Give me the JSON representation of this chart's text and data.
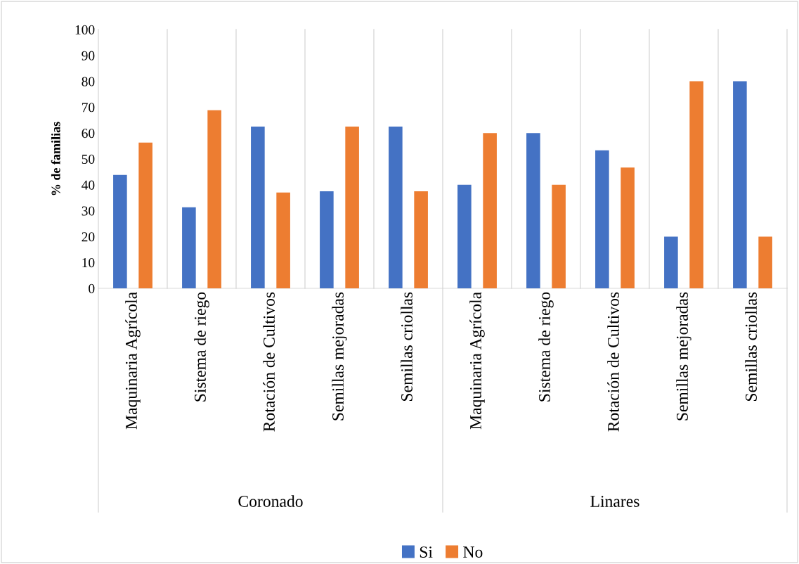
{
  "chart_data": {
    "type": "bar",
    "categories": [
      "Maquinaria Agrícola",
      "Sistema de riego",
      "Rotación de Cultivos",
      "Semillas mejoradas",
      "Semillas criollas",
      "Maquinaria Agrícola",
      "Sistema de riego",
      "Rotación de Cultivos",
      "Semillas mejoradas",
      "Semillas criollas"
    ],
    "series": [
      {
        "name": "Si",
        "color": "#4472c4",
        "values": [
          43.8,
          31.3,
          62.5,
          37.5,
          62.5,
          40,
          60,
          53.3,
          20,
          80
        ]
      },
      {
        "name": "No",
        "color": "#ed7d31",
        "values": [
          56.3,
          68.8,
          37,
          62.5,
          37.5,
          60,
          40,
          46.7,
          80,
          20
        ]
      }
    ],
    "ylabel": "% de familias",
    "ylim": [
      0,
      100
    ],
    "yticks": [
      0,
      10,
      20,
      30,
      40,
      50,
      60,
      70,
      80,
      90,
      100
    ],
    "annotations": [
      "Coronado",
      "Linares"
    ],
    "grid": "x",
    "legend": "bottom"
  }
}
